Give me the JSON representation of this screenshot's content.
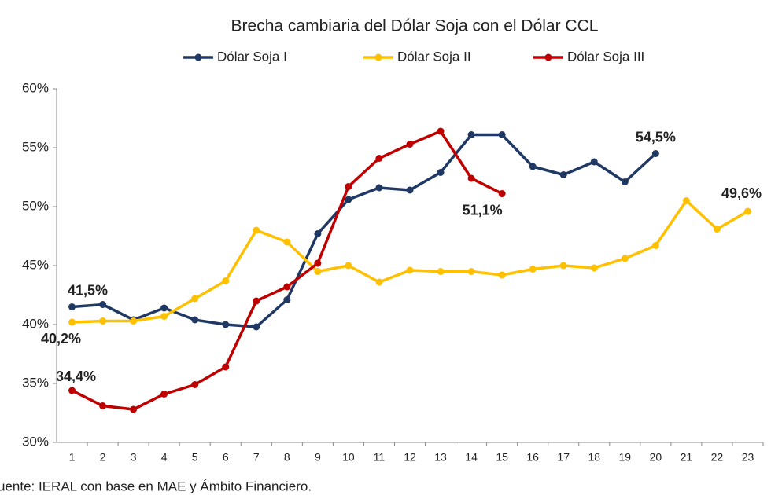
{
  "chart_data": {
    "type": "line",
    "title": "Brecha cambiaria del Dólar Soja con el Dólar CCL",
    "source": "uente: IERAL con base en MAE y Ámbito Financiero.",
    "categories": [
      "1",
      "2",
      "3",
      "4",
      "5",
      "6",
      "7",
      "8",
      "9",
      "10",
      "11",
      "12",
      "13",
      "14",
      "15",
      "16",
      "17",
      "18",
      "19",
      "20",
      "21",
      "22",
      "23"
    ],
    "ylim": [
      30,
      60
    ],
    "yticks": [
      {
        "value": 30,
        "label": "30%"
      },
      {
        "value": 35,
        "label": "35%"
      },
      {
        "value": 40,
        "label": "40%"
      },
      {
        "value": 45,
        "label": "45%"
      },
      {
        "value": 50,
        "label": "50%"
      },
      {
        "value": 55,
        "label": "55%"
      },
      {
        "value": 60,
        "label": "60%"
      }
    ],
    "grid": false,
    "legend": "top",
    "series": [
      {
        "name": "Dólar Soja I",
        "color": "#1f3864",
        "label_color": "#2f4a80",
        "values": [
          41.5,
          41.7,
          40.4,
          41.4,
          40.4,
          40.0,
          39.8,
          42.1,
          47.7,
          50.6,
          51.6,
          51.4,
          52.9,
          56.1,
          56.1,
          53.4,
          52.7,
          53.8,
          52.1,
          54.5,
          null,
          null,
          null
        ],
        "value_labels": [
          "41,5%",
          null,
          null,
          null,
          null,
          null,
          null,
          null,
          null,
          null,
          null,
          null,
          null,
          null,
          null,
          null,
          null,
          null,
          null,
          "54,5%",
          null,
          null,
          null
        ]
      },
      {
        "name": "Dólar Soja II",
        "color": "#ffc000",
        "label_color": "#bf9000",
        "values": [
          40.2,
          40.3,
          40.3,
          40.7,
          42.2,
          43.7,
          48.0,
          47.0,
          44.5,
          45.0,
          43.6,
          44.6,
          44.5,
          44.5,
          44.2,
          44.7,
          45.0,
          44.8,
          45.6,
          46.7,
          50.5,
          48.1,
          49.6
        ],
        "value_labels": [
          "40,2%",
          null,
          null,
          null,
          null,
          null,
          null,
          null,
          null,
          null,
          null,
          null,
          null,
          null,
          null,
          null,
          null,
          null,
          null,
          null,
          null,
          null,
          "49,6%"
        ]
      },
      {
        "name": "Dólar Soja III",
        "color": "#c00000",
        "label_color": "#c00000",
        "values": [
          34.4,
          33.1,
          32.8,
          34.1,
          34.9,
          36.4,
          42.0,
          43.2,
          45.2,
          51.7,
          54.1,
          55.3,
          56.4,
          52.4,
          51.1,
          null,
          null,
          null,
          null,
          null,
          null,
          null,
          null
        ],
        "value_labels": [
          "34,4%",
          null,
          null,
          null,
          null,
          null,
          null,
          null,
          null,
          null,
          null,
          null,
          null,
          null,
          "51,1%",
          null,
          null,
          null,
          null,
          null,
          null,
          null,
          null
        ]
      }
    ]
  }
}
